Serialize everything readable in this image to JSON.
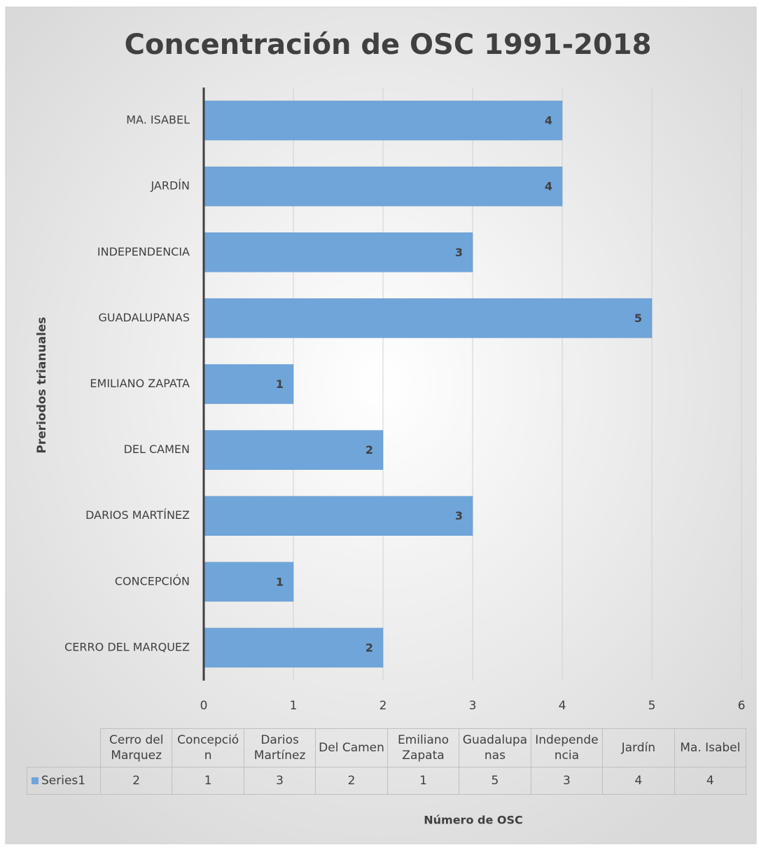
{
  "chart_data": {
    "type": "bar",
    "orientation": "horizontal",
    "title": "Concentración de OSC 1991-2018",
    "y_label": "Preriodos trianuales",
    "x_label": "Número de OSC",
    "categories": [
      "CERRO DEL MARQUEZ",
      "CONCEPCIÓN",
      "DARIOS MARTÍNEZ",
      "DEL CAMEN",
      "EMILIANO ZAPATA",
      "GUADALUPANAS",
      "INDEPENDENCIA",
      "JARDÍN",
      "MA. ISABEL"
    ],
    "table_categories": [
      "Cerro del Marquez",
      "Concepción",
      "Darios Martínez",
      "Del Camen",
      "Emiliano Zapata",
      "Guadalupanas",
      "Independencia",
      "Jardín",
      "Ma. Isabel"
    ],
    "series": [
      {
        "name": "Series1",
        "color": "#70a5da",
        "values": [
          2,
          1,
          3,
          2,
          1,
          5,
          3,
          4,
          4
        ]
      }
    ],
    "xlim": [
      0,
      6
    ],
    "xticks": [
      0,
      1,
      2,
      3,
      4,
      5,
      6
    ],
    "grid": true
  }
}
